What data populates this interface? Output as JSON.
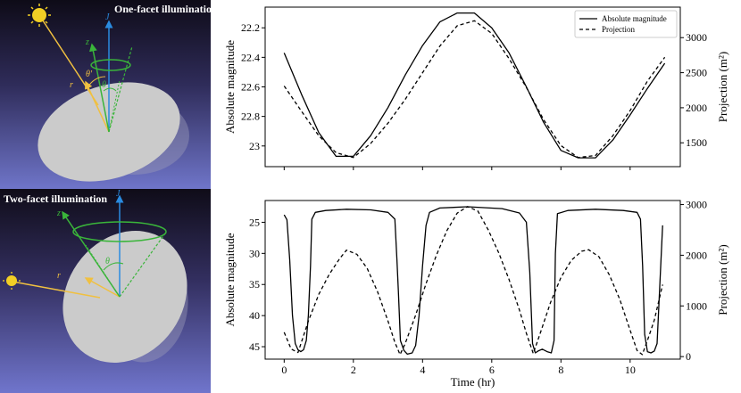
{
  "illustrations": {
    "top": {
      "caption": "One-facet illumination",
      "labels": {
        "J": "J",
        "z": "z",
        "r": "r",
        "theta": "θ",
        "theta_prime": "θ'"
      }
    },
    "bottom": {
      "caption": "Two-facet illumination",
      "labels": {
        "J": "J",
        "z": "z",
        "r": "r",
        "theta": "θ"
      }
    }
  },
  "colors": {
    "sky_top": "#0e0b17",
    "sky_bottom": "#6e74c8",
    "disk": "#c8c8c8",
    "J_axis": "#2a8be0",
    "z_axis": "#3ab53a",
    "sun": "#f2cf25",
    "r_vector": "#f0c040"
  },
  "chart_data": [
    {
      "type": "line",
      "title": "",
      "xlabel": "",
      "ylabel": "Absolute magnitude",
      "ylabel_right": "Projection (m²)",
      "xlim": [
        -0.55,
        11.45
      ],
      "ylim": [
        23.14,
        22.06
      ],
      "ylim_right": [
        1160,
        3435
      ],
      "yticks": [
        22.2,
        22.4,
        22.6,
        22.8,
        23.0
      ],
      "yticks_right": [
        1500,
        2000,
        2500,
        3000
      ],
      "xticks": [
        0,
        2,
        4,
        6,
        8,
        10
      ],
      "show_x_tick_labels": false,
      "legend": {
        "position": "top-right",
        "entries": [
          "Absolute magnitude",
          "Projection"
        ]
      },
      "grid": false,
      "series": [
        {
          "name": "Absolute magnitude",
          "style": "solid",
          "axis": "left",
          "x": [
            0.0,
            0.5,
            1.0,
            1.5,
            2.0,
            2.5,
            3.0,
            3.5,
            4.0,
            4.5,
            5.0,
            5.5,
            6.0,
            6.5,
            7.0,
            7.5,
            8.0,
            8.5,
            9.0,
            9.5,
            10.0,
            10.5,
            11.0
          ],
          "values": [
            22.37,
            22.65,
            22.91,
            23.07,
            23.07,
            22.93,
            22.74,
            22.52,
            22.32,
            22.16,
            22.1,
            22.1,
            22.2,
            22.37,
            22.6,
            22.84,
            23.03,
            23.08,
            23.08,
            22.96,
            22.79,
            22.61,
            22.44
          ]
        },
        {
          "name": "Projection",
          "style": "dashed",
          "axis": "right",
          "x": [
            0.0,
            0.5,
            1.0,
            1.5,
            2.0,
            2.5,
            3.0,
            3.5,
            4.0,
            4.5,
            5.0,
            5.5,
            6.0,
            6.5,
            7.0,
            7.5,
            8.0,
            8.5,
            9.0,
            9.5,
            10.0,
            10.5,
            11.0
          ],
          "values": [
            2310,
            1950,
            1600,
            1360,
            1290,
            1490,
            1780,
            2120,
            2500,
            2880,
            3170,
            3240,
            3060,
            2700,
            2290,
            1830,
            1460,
            1290,
            1320,
            1600,
            1960,
            2380,
            2720
          ]
        }
      ]
    },
    {
      "type": "line",
      "title": "",
      "xlabel": "Time (hr)",
      "ylabel": "Absolute magnitude",
      "ylabel_right": "Projection (m²)",
      "xlim": [
        -0.55,
        11.45
      ],
      "ylim": [
        47.0,
        21.5
      ],
      "ylim_right": [
        -50,
        3080
      ],
      "yticks": [
        25,
        30,
        35,
        40,
        45
      ],
      "yticks_right": [
        0,
        1000,
        2000,
        3000
      ],
      "xticks": [
        0,
        2,
        4,
        6,
        8,
        10
      ],
      "show_x_tick_labels": true,
      "grid": false,
      "series": [
        {
          "name": "Absolute magnitude",
          "style": "solid",
          "axis": "left",
          "x": [
            0.0,
            0.08,
            0.16,
            0.24,
            0.32,
            0.4,
            0.48,
            0.56,
            0.64,
            0.7,
            0.76,
            0.8,
            0.9,
            1.2,
            1.8,
            2.5,
            3.0,
            3.2,
            3.26,
            3.3,
            3.36,
            3.46,
            3.56,
            3.7,
            3.8,
            3.9,
            4.0,
            4.1,
            4.2,
            4.5,
            5.3,
            6.3,
            6.8,
            7.0,
            7.1,
            7.18,
            7.26,
            7.34,
            7.46,
            7.6,
            7.72,
            7.8,
            7.84,
            7.9,
            8.2,
            9.0,
            9.8,
            10.2,
            10.3,
            10.36,
            10.42,
            10.5,
            10.6,
            10.7,
            10.78,
            10.86,
            10.94
          ],
          "values": [
            23.8,
            24.6,
            31.0,
            40.0,
            44.5,
            45.5,
            45.8,
            45.5,
            44.0,
            40.0,
            32.0,
            24.5,
            23.4,
            23.1,
            22.9,
            23.0,
            23.4,
            24.5,
            31.0,
            36.0,
            44.0,
            45.6,
            46.2,
            46.0,
            44.8,
            40.0,
            32.0,
            25.5,
            23.4,
            22.7,
            22.5,
            22.8,
            23.5,
            25.0,
            33.0,
            44.5,
            46.0,
            45.7,
            45.4,
            45.8,
            46.0,
            44.0,
            30.0,
            23.6,
            23.1,
            22.9,
            23.1,
            23.4,
            24.5,
            32.0,
            43.0,
            45.8,
            46.0,
            45.7,
            44.5,
            35.0,
            25.5
          ]
        },
        {
          "name": "Projection",
          "style": "dashed",
          "axis": "right",
          "x": [
            0.0,
            0.2,
            0.4,
            0.7,
            1.0,
            1.3,
            1.6,
            1.8,
            2.1,
            2.4,
            2.7,
            3.0,
            3.2,
            3.35,
            3.5,
            3.8,
            4.1,
            4.4,
            4.7,
            5.0,
            5.3,
            5.6,
            5.9,
            6.2,
            6.5,
            6.8,
            7.0,
            7.2,
            7.4,
            7.7,
            8.0,
            8.3,
            8.6,
            8.8,
            9.1,
            9.4,
            9.7,
            10.0,
            10.2,
            10.35,
            10.5,
            10.7,
            10.94
          ],
          "values": [
            480,
            150,
            80,
            700,
            1230,
            1620,
            1930,
            2100,
            2020,
            1740,
            1280,
            700,
            280,
            40,
            260,
            820,
            1440,
            2000,
            2480,
            2830,
            2960,
            2870,
            2500,
            2050,
            1520,
            920,
            460,
            60,
            460,
            1070,
            1560,
            1900,
            2080,
            2110,
            1970,
            1610,
            1130,
            520,
            120,
            40,
            320,
            720,
            1420
          ]
        }
      ]
    }
  ]
}
